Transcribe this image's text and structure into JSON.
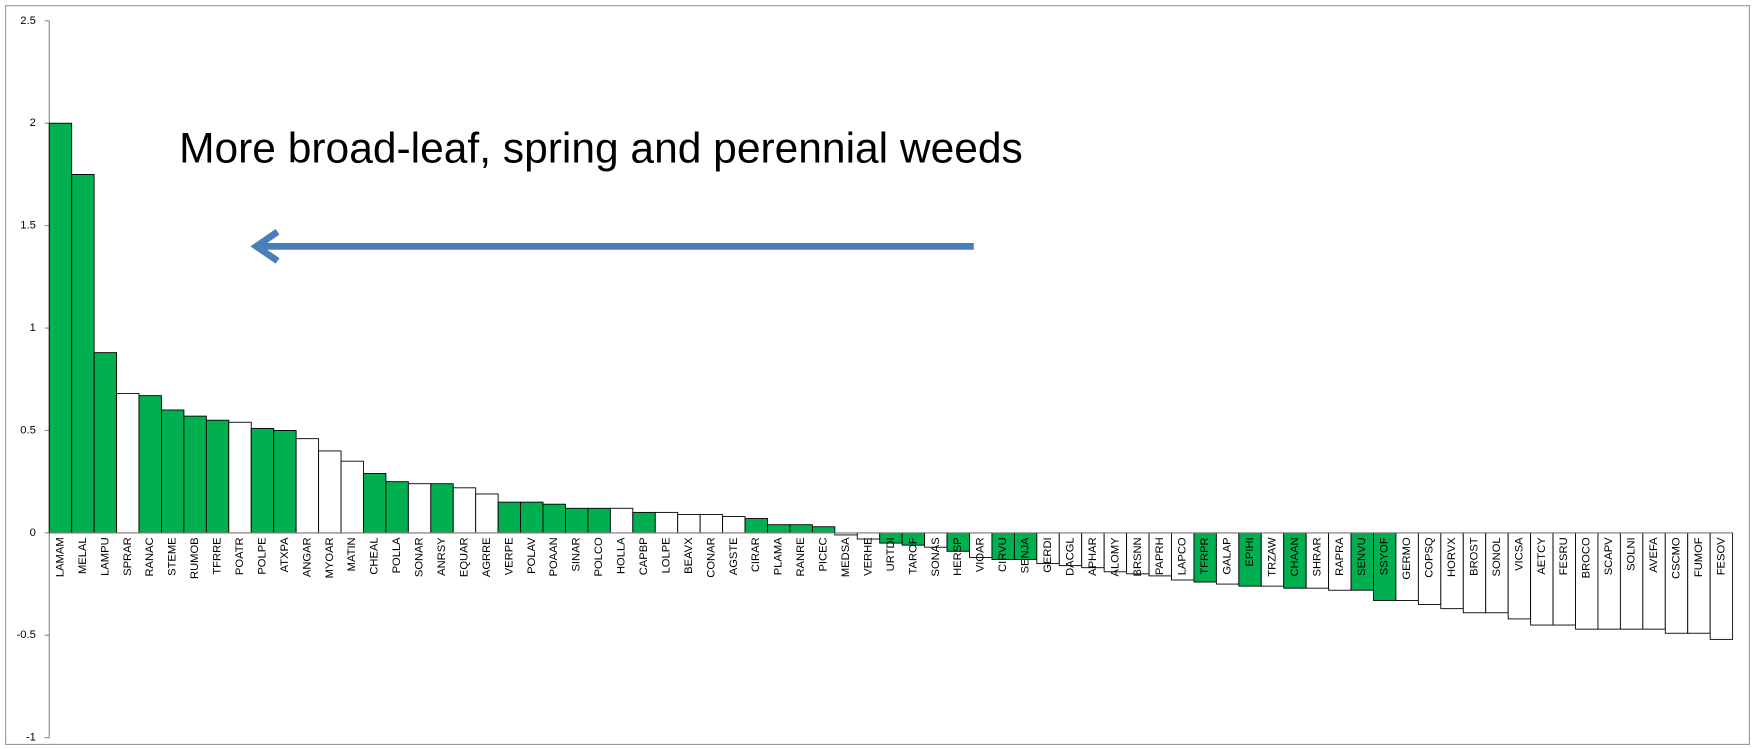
{
  "chart_data": {
    "type": "bar",
    "annotation": "More broad-leaf, spring and perennial weeds",
    "categories": [
      "LAMAM",
      "MELAL",
      "LAMPU",
      "SPRAR",
      "RANAC",
      "STEME",
      "RUMOB",
      "TFRRE",
      "POATR",
      "POLPE",
      "ATXPA",
      "ANGAR",
      "MYOAR",
      "MATIN",
      "CHEAL",
      "POLLA",
      "SONAR",
      "ANRSY",
      "EQUAR",
      "AGRRE",
      "VERPE",
      "POLAV",
      "POAAN",
      "SINAR",
      "POLCO",
      "HOLLA",
      "CAPBP",
      "LOLPE",
      "BEAVX",
      "CONAR",
      "AGSTE",
      "CIRAR",
      "PLAMA",
      "RANRE",
      "PICEC",
      "MEDSA",
      "VERHE",
      "URTDI",
      "TAROF",
      "SONAS",
      "HERSP",
      "VIOAR",
      "CIRVU",
      "SENJA",
      "GERDI",
      "DACGL",
      "APHAR",
      "ALOMY",
      "BRSNN",
      "PAPRH",
      "LAPCO",
      "TFRPR",
      "GALAP",
      "EPIHI",
      "TRZAW",
      "CHAAN",
      "SHRAR",
      "RAPRA",
      "SENVU",
      "SSYOF",
      "GERMO",
      "COPSQ",
      "HORVX",
      "BROST",
      "SONOL",
      "VICSA",
      "AETCY",
      "FESRU",
      "BROCO",
      "SCAPV",
      "SOLNI",
      "AVEFA",
      "CSCMO",
      "FUMOF",
      "FESOV"
    ],
    "values": [
      2.0,
      1.75,
      0.88,
      0.68,
      0.67,
      0.6,
      0.57,
      0.55,
      0.54,
      0.51,
      0.5,
      0.46,
      0.4,
      0.35,
      0.29,
      0.25,
      0.24,
      0.24,
      0.22,
      0.19,
      0.15,
      0.15,
      0.14,
      0.12,
      0.12,
      0.12,
      0.1,
      0.1,
      0.09,
      0.09,
      0.08,
      0.07,
      0.04,
      0.04,
      0.03,
      -0.01,
      -0.03,
      -0.05,
      -0.06,
      -0.07,
      -0.09,
      -0.12,
      -0.13,
      -0.13,
      -0.15,
      -0.16,
      -0.17,
      -0.19,
      -0.2,
      -0.21,
      -0.23,
      -0.24,
      -0.25,
      -0.26,
      -0.26,
      -0.27,
      -0.27,
      -0.28,
      -0.28,
      -0.33,
      -0.33,
      -0.35,
      -0.37,
      -0.39,
      -0.39,
      -0.42,
      -0.45,
      -0.45,
      -0.47,
      -0.47,
      -0.47,
      -0.47,
      -0.49,
      -0.49,
      -0.52
    ],
    "colors": [
      "#00b050",
      "#00b050",
      "#00b050",
      "#ffffff",
      "#00b050",
      "#00b050",
      "#00b050",
      "#00b050",
      "#ffffff",
      "#00b050",
      "#00b050",
      "#ffffff",
      "#ffffff",
      "#ffffff",
      "#00b050",
      "#00b050",
      "#ffffff",
      "#00b050",
      "#ffffff",
      "#ffffff",
      "#00b050",
      "#00b050",
      "#00b050",
      "#00b050",
      "#00b050",
      "#ffffff",
      "#00b050",
      "#ffffff",
      "#ffffff",
      "#ffffff",
      "#ffffff",
      "#00b050",
      "#00b050",
      "#00b050",
      "#00b050",
      "#ffffff",
      "#ffffff",
      "#00b050",
      "#00b050",
      "#ffffff",
      "#00b050",
      "#ffffff",
      "#00b050",
      "#00b050",
      "#ffffff",
      "#ffffff",
      "#ffffff",
      "#ffffff",
      "#ffffff",
      "#ffffff",
      "#ffffff",
      "#00b050",
      "#ffffff",
      "#00b050",
      "#ffffff",
      "#00b050",
      "#ffffff",
      "#ffffff",
      "#00b050",
      "#00b050",
      "#ffffff",
      "#ffffff",
      "#ffffff",
      "#ffffff",
      "#ffffff",
      "#ffffff",
      "#ffffff",
      "#ffffff",
      "#ffffff",
      "#ffffff",
      "#ffffff",
      "#ffffff",
      "#ffffff",
      "#ffffff",
      "#ffffff"
    ],
    "ylim": [
      -1,
      2.5
    ],
    "yticks": [
      -1,
      -0.5,
      0,
      0.5,
      1,
      1.5,
      2,
      2.5
    ],
    "grid": false
  }
}
